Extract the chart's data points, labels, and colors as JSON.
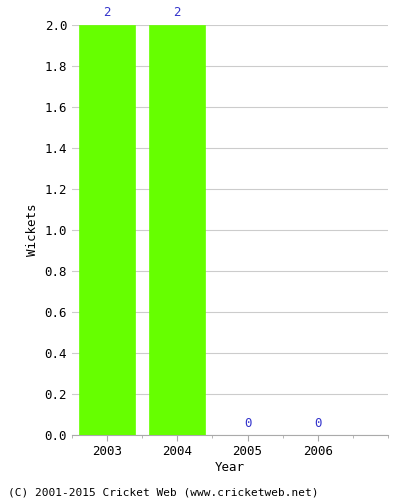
{
  "years": [
    2003,
    2004,
    2005,
    2006
  ],
  "values": [
    2,
    2,
    0,
    0
  ],
  "bar_color": "#66ff00",
  "bar_edge_color": "#66ff00",
  "value_label_color": "#3333cc",
  "value_label_fontsize": 9,
  "xlabel": "Year",
  "ylabel": "Wickets",
  "ylim": [
    0,
    2.0
  ],
  "yticks": [
    0.0,
    0.2,
    0.4,
    0.6,
    0.8,
    1.0,
    1.2,
    1.4,
    1.6,
    1.8,
    2.0
  ],
  "background_color": "#ffffff",
  "grid_color": "#cccccc",
  "tick_label_fontsize": 9,
  "axis_label_fontsize": 9,
  "footnote": "(C) 2001-2015 Cricket Web (www.cricketweb.net)",
  "footnote_fontsize": 8,
  "xlim": [
    2002.5,
    2007.0
  ],
  "bar_width": 0.8
}
